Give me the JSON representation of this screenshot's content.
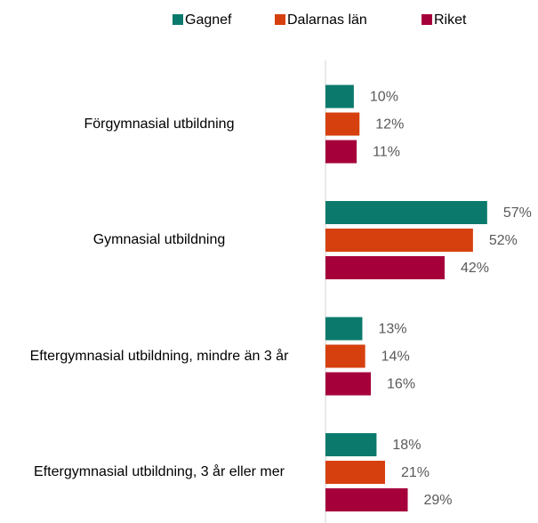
{
  "chart_data": {
    "type": "barh",
    "categories": [
      "Förgymnasial utbildning",
      "Gymnasial utbildning",
      "Eftergymnasial utbildning, mindre än 3 år",
      "Eftergymnasial utbildning, 3 år eller mer"
    ],
    "series": [
      {
        "name": "Gagnef",
        "color": "#0b7a6c",
        "values": [
          10,
          57,
          13,
          18
        ],
        "value_labels": [
          "10%",
          "57%",
          "13%",
          "18%"
        ]
      },
      {
        "name": "Dalarnas län",
        "color": "#d6400f",
        "values": [
          12,
          52,
          14,
          21
        ],
        "value_labels": [
          "12%",
          "52%",
          "14%",
          "21%"
        ]
      },
      {
        "name": "Riket",
        "color": "#a6003b",
        "values": [
          11,
          42,
          16,
          29
        ],
        "value_labels": [
          "11%",
          "42%",
          "16%",
          "29%"
        ]
      }
    ],
    "legend": "top"
  }
}
